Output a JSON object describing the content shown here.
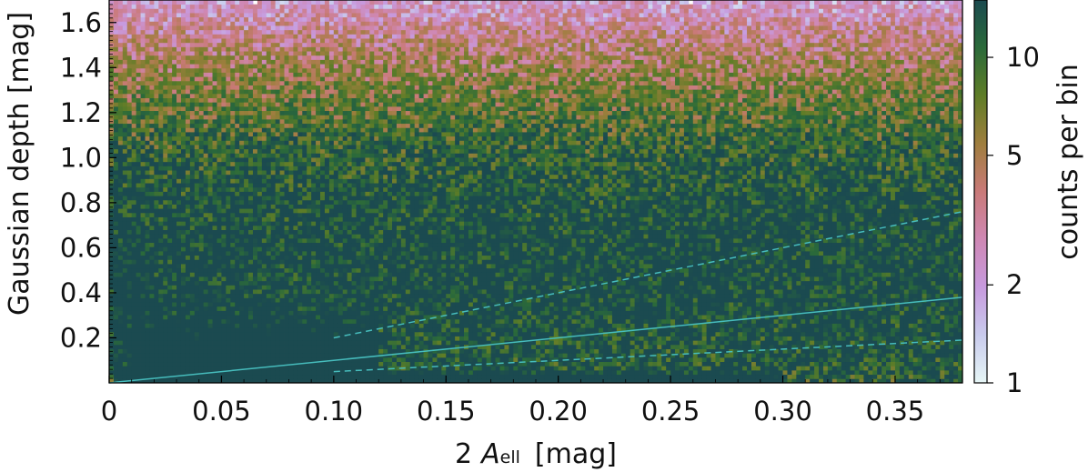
{
  "chart_data": {
    "type": "heatmap",
    "title": "",
    "x_axis": {
      "label_prefix": "2",
      "label_symbol": "A",
      "label_subscript": "ell",
      "label_unit": "[mag]",
      "range": [
        0,
        0.38
      ],
      "ticks": [
        0,
        0.05,
        0.1,
        0.15,
        0.2,
        0.25,
        0.3,
        0.35
      ],
      "tick_labels": [
        "0",
        "0.05",
        "0.10",
        "0.15",
        "0.20",
        "0.25",
        "0.30",
        "0.35"
      ]
    },
    "y_axis": {
      "label": "Gaussian depth  [mag]",
      "range": [
        0,
        1.7
      ],
      "ticks": [
        0.2,
        0.4,
        0.6,
        0.8,
        1.0,
        1.2,
        1.4,
        1.6
      ],
      "tick_labels": [
        "0.2",
        "0.4",
        "0.6",
        "0.8",
        "1.0",
        "1.2",
        "1.4",
        "1.6"
      ]
    },
    "colorbar": {
      "label": "counts per bin",
      "scale": "log",
      "range": [
        1,
        15
      ],
      "ticks": [
        1,
        2,
        5,
        10
      ],
      "tick_labels": [
        "1",
        "2",
        "5",
        "10"
      ],
      "colormap": [
        "#e6f6f6",
        "#c9cbed",
        "#c79ade",
        "#cf88b4",
        "#c97a78",
        "#9f7e3e",
        "#5f7d27",
        "#2b6a3a",
        "#1b4a50"
      ]
    },
    "density_components": [
      {
        "x": [
          0.003,
          0.015
        ],
        "y_center": 0.33,
        "y_spread": 0.22,
        "weight": 0.12
      },
      {
        "x": [
          0.01,
          0.3
        ],
        "y_center": 0.02,
        "y_spread": 0.02,
        "weight": 0.3
      },
      {
        "x": [
          0.01,
          0.12
        ],
        "y_center": 0.12,
        "y_spread": 0.1,
        "weight": 0.3
      },
      {
        "x": [
          0.0,
          0.38
        ],
        "y_center": 0.5,
        "y_spread": 0.6,
        "weight": 0.28
      }
    ],
    "lines": [
      {
        "style": "solid",
        "color": "#46bcbc",
        "x": [
          0.0,
          0.38
        ],
        "y": [
          0.0,
          0.38
        ]
      },
      {
        "style": "dashed",
        "color": "#46bcbc",
        "x": [
          0.1,
          0.38
        ],
        "y": [
          0.2,
          0.76
        ]
      },
      {
        "style": "dashed",
        "color": "#46bcbc",
        "x": [
          0.1,
          0.38
        ],
        "y": [
          0.05,
          0.19
        ]
      }
    ]
  }
}
